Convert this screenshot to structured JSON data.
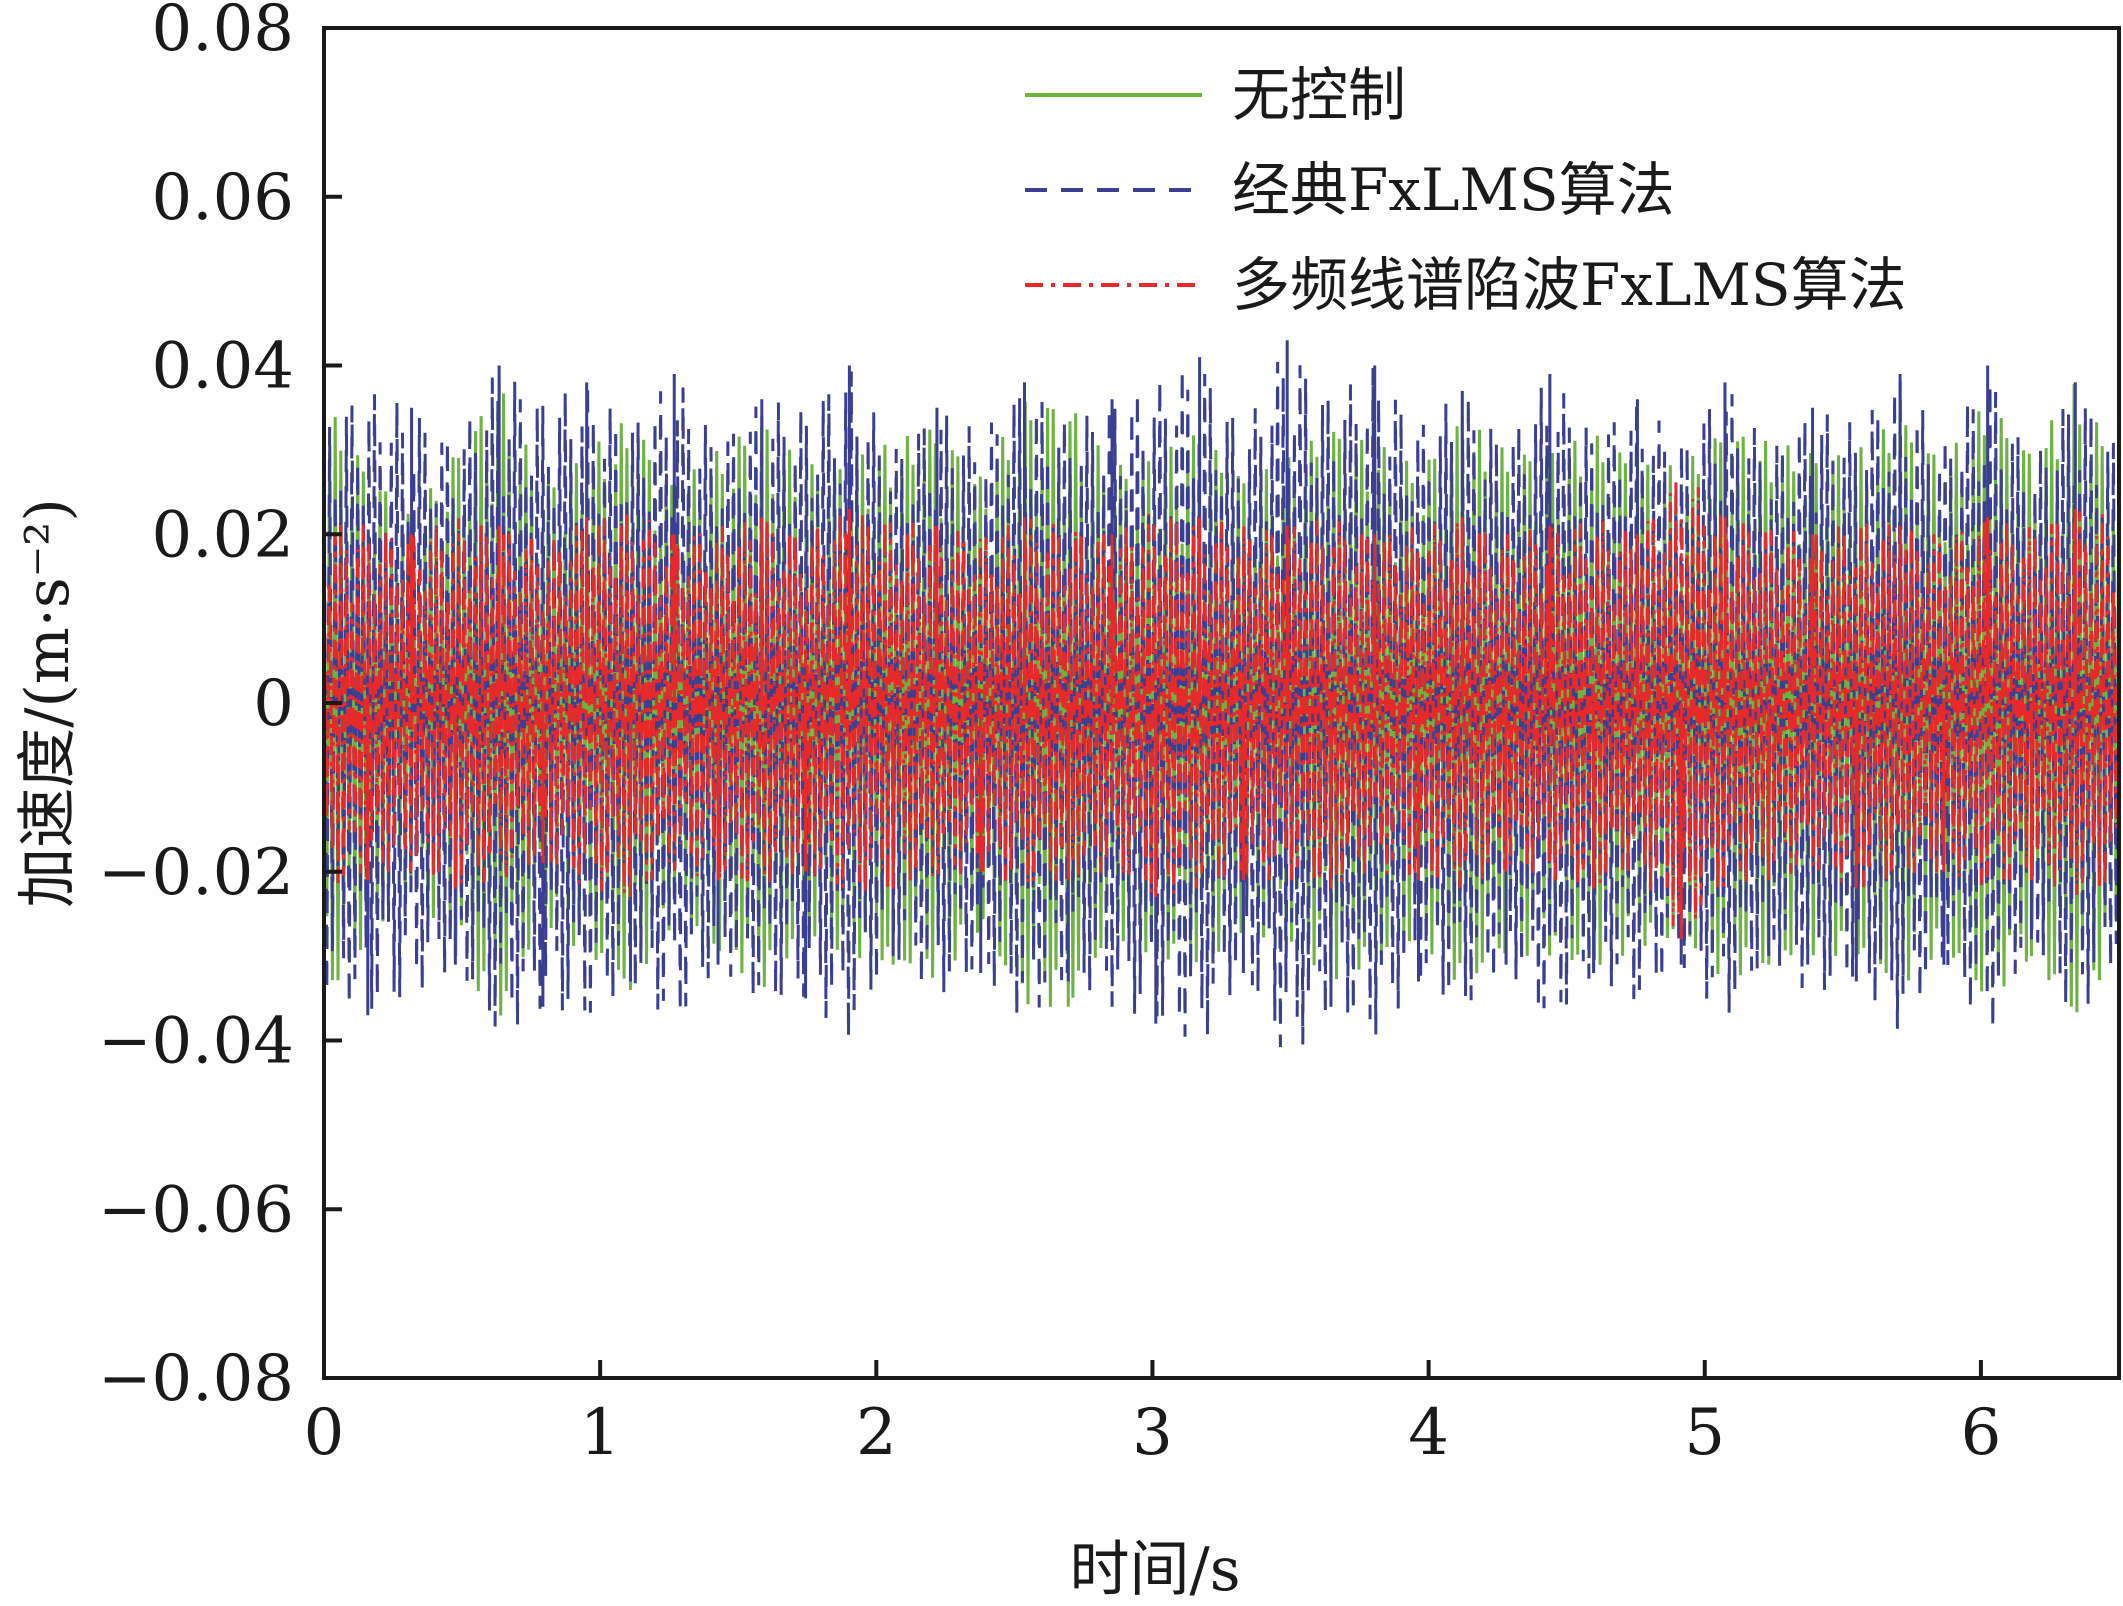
{
  "chart_data": {
    "type": "line",
    "title": "",
    "xlabel": "时间/s",
    "ylabel": "加速度/(m·s⁻²)",
    "xlim": [
      0,
      6.5
    ],
    "ylim": [
      -0.08,
      0.08
    ],
    "x_ticks": [
      0,
      1,
      2,
      3,
      4,
      5,
      6
    ],
    "x_tick_labels": [
      "0",
      "1",
      "2",
      "3",
      "4",
      "5",
      "6"
    ],
    "y_ticks": [
      0.08,
      0.06,
      0.04,
      0.02,
      0,
      -0.02,
      -0.04,
      -0.06,
      -0.08
    ],
    "y_tick_labels": [
      "0.08",
      "0.06",
      "0.04",
      "0.02",
      "0",
      "−0.02",
      "−0.04",
      "−0.06",
      "−0.08"
    ],
    "grid": false,
    "legend_position": "top-right",
    "series": [
      {
        "name": "无控制",
        "color": "#6db33f",
        "line_style": "solid",
        "values": [
          0.036,
          -0.028,
          0.022,
          -0.03,
          0.038,
          -0.026,
          0.03,
          -0.034,
          0.026,
          -0.03,
          0.034,
          -0.028,
          0.03,
          -0.031,
          0.033,
          -0.027,
          0.036,
          -0.036,
          0.028,
          -0.03,
          0.032,
          -0.027,
          0.029,
          -0.033,
          0.031,
          -0.028,
          0.034,
          -0.03,
          0.03,
          -0.032,
          0.029,
          -0.028,
          0.033,
          -0.031,
          0.03,
          -0.03,
          0.034,
          -0.029,
          0.036,
          -0.03,
          0.038,
          -0.029
        ]
      },
      {
        "name": "经典FxLMS算法",
        "color": "#3b3f93",
        "line_style": "dashed",
        "values": [
          0.034,
          -0.037,
          0.035,
          -0.031,
          0.04,
          -0.036,
          0.038,
          -0.033,
          0.039,
          -0.031,
          0.036,
          -0.035,
          0.04,
          -0.03,
          0.035,
          -0.032,
          0.038,
          -0.033,
          0.036,
          -0.038,
          0.041,
          -0.032,
          0.043,
          -0.036,
          0.04,
          -0.033,
          0.037,
          -0.031,
          0.039,
          -0.032,
          0.036,
          -0.031,
          0.038,
          -0.03,
          0.035,
          -0.033,
          0.039,
          -0.031,
          0.04,
          -0.028,
          0.038,
          -0.03
        ]
      },
      {
        "name": "多频线谱陷波FxLMS算法",
        "color": "#e8292a",
        "line_style": "dashdot",
        "values": [
          0.022,
          -0.021,
          0.02,
          -0.022,
          0.021,
          -0.019,
          0.022,
          -0.023,
          0.02,
          -0.021,
          0.022,
          -0.02,
          0.023,
          -0.022,
          0.021,
          -0.02,
          0.022,
          -0.021,
          0.02,
          -0.023,
          0.022,
          -0.021,
          0.021,
          -0.022,
          0.02,
          -0.021,
          0.022,
          -0.02,
          0.021,
          -0.022,
          0.02,
          -0.028,
          0.022,
          -0.021,
          0.02,
          -0.022,
          0.021,
          -0.02,
          0.022,
          -0.021,
          0.023,
          -0.022
        ]
      }
    ]
  }
}
